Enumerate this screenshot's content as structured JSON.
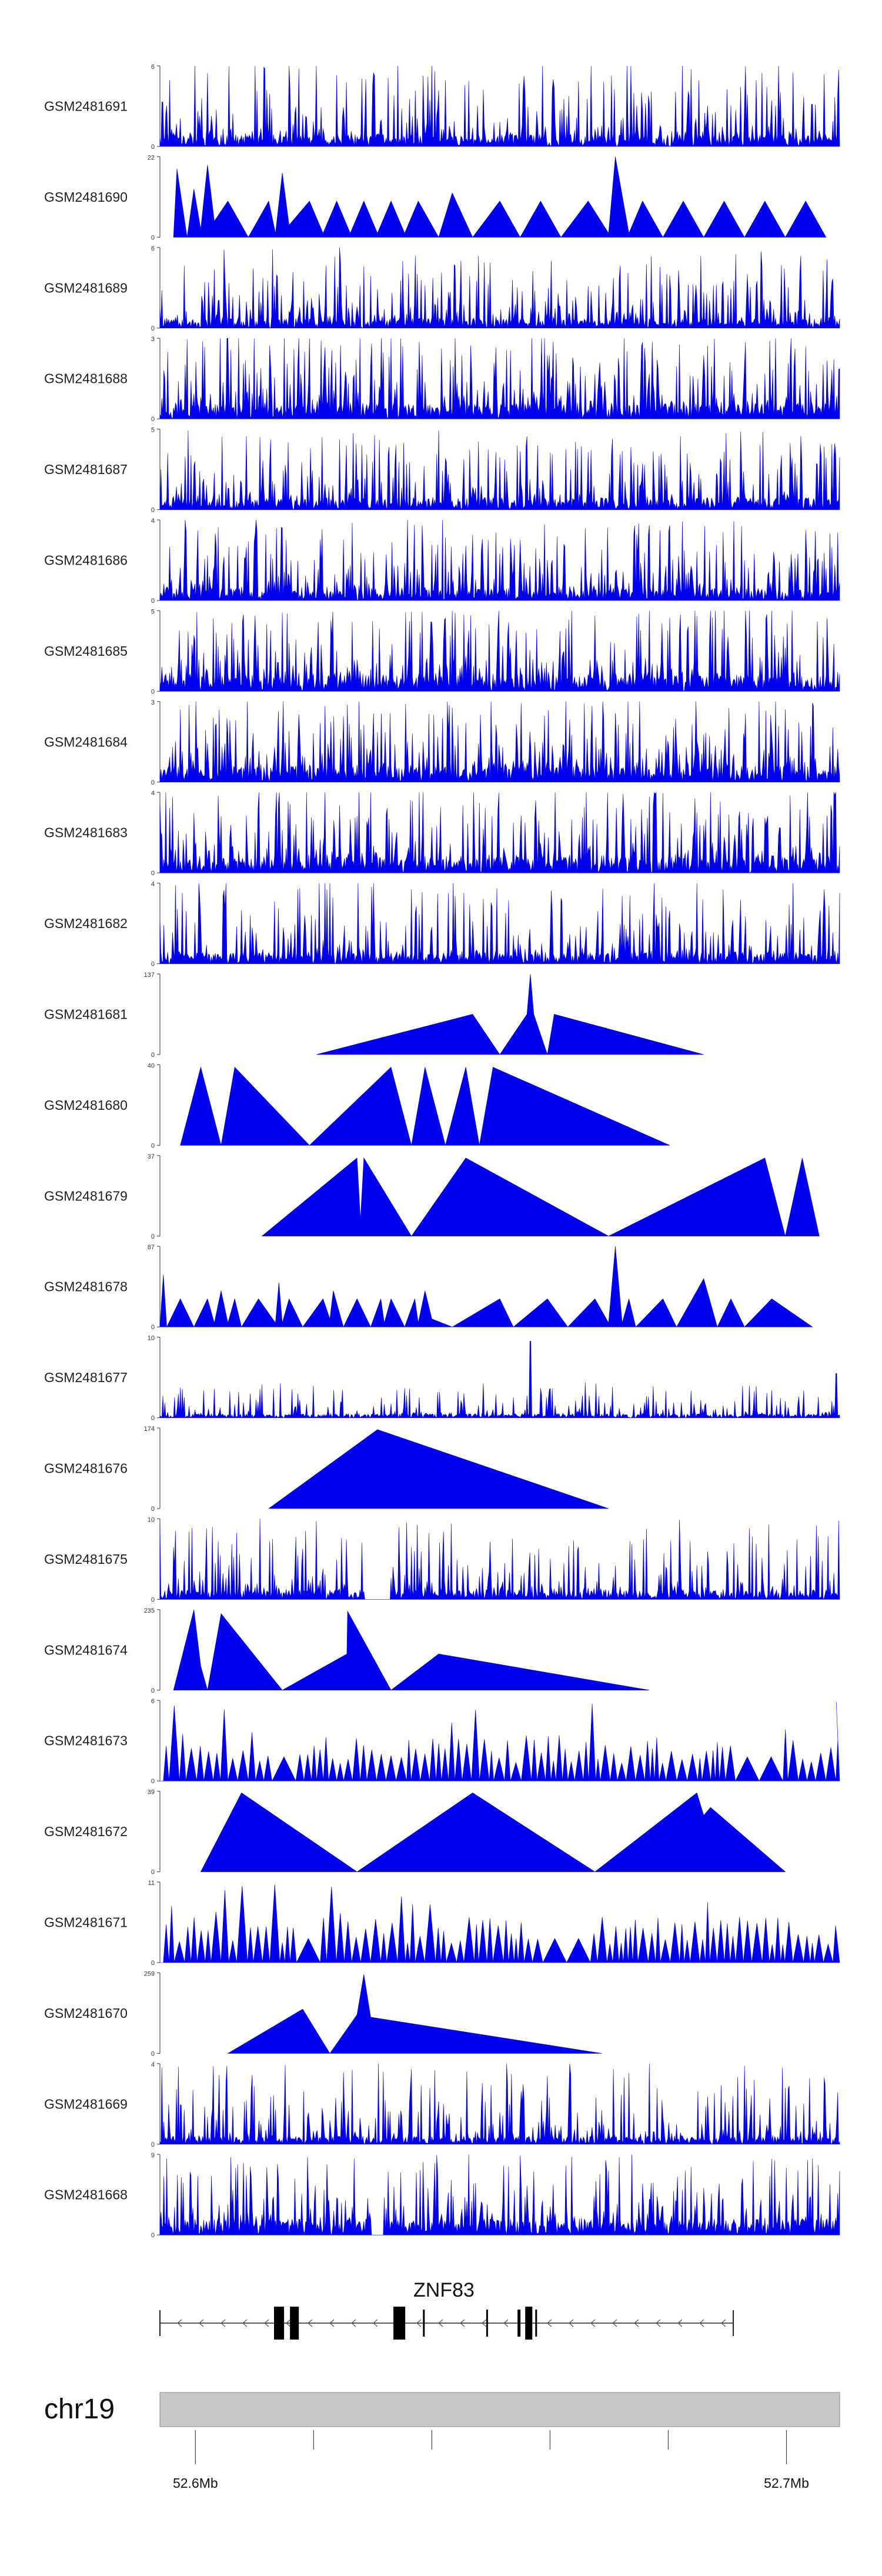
{
  "chart_data": {
    "type": "area",
    "title": "",
    "fill_color": "#0000EE",
    "region": {
      "chrom": "chr19",
      "start_mb": 52.594,
      "end_mb": 52.709
    },
    "axis_ticks_mb": [
      52.6,
      52.62,
      52.64,
      52.66,
      52.68,
      52.7
    ],
    "axis_labels": {
      "t0": "52.6Mb",
      "t5": "52.7Mb"
    },
    "gene": {
      "name": "ZNF83",
      "strand": "-",
      "start_mb": 52.594,
      "end_mb": 52.691,
      "exons_mb": [
        [
          52.6133,
          52.615
        ],
        [
          52.616,
          52.6175
        ],
        [
          52.6335,
          52.6355
        ],
        [
          52.6385,
          52.6388
        ],
        [
          52.6492,
          52.6495
        ],
        [
          52.6545,
          52.655
        ],
        [
          52.6558,
          52.657
        ],
        [
          52.6575,
          52.6578
        ]
      ]
    },
    "tracks": [
      {
        "label": "GSM2481691",
        "ymax": "6",
        "ymin": "0",
        "style": "noise",
        "seed": 11,
        "baseline": 0.15,
        "spike_max": 1.0,
        "spike_rate": 0.5
      },
      {
        "label": "GSM2481690",
        "ymax": "22",
        "ymin": "0",
        "style": "tri",
        "points": [
          [
            0.02,
            0
          ],
          [
            0.025,
            0.85
          ],
          [
            0.04,
            0
          ],
          [
            0.05,
            0.6
          ],
          [
            0.06,
            0.1
          ],
          [
            0.07,
            0.9
          ],
          [
            0.08,
            0.2
          ],
          [
            0.1,
            0.45
          ],
          [
            0.13,
            0
          ],
          [
            0.16,
            0.45
          ],
          [
            0.17,
            0.05
          ],
          [
            0.18,
            0.8
          ],
          [
            0.19,
            0.15
          ],
          [
            0.22,
            0.45
          ],
          [
            0.24,
            0.05
          ],
          [
            0.26,
            0.45
          ],
          [
            0.28,
            0.05
          ],
          [
            0.3,
            0.45
          ],
          [
            0.32,
            0.05
          ],
          [
            0.34,
            0.45
          ],
          [
            0.36,
            0.05
          ],
          [
            0.38,
            0.45
          ],
          [
            0.41,
            0
          ],
          [
            0.43,
            0.55
          ],
          [
            0.46,
            0
          ],
          [
            0.5,
            0.45
          ],
          [
            0.53,
            0
          ],
          [
            0.56,
            0.45
          ],
          [
            0.59,
            0
          ],
          [
            0.63,
            0.45
          ],
          [
            0.66,
            0.05
          ],
          [
            0.67,
            1.0
          ],
          [
            0.69,
            0.05
          ],
          [
            0.71,
            0.45
          ],
          [
            0.74,
            0
          ],
          [
            0.77,
            0.45
          ],
          [
            0.8,
            0
          ],
          [
            0.83,
            0.45
          ],
          [
            0.86,
            0
          ],
          [
            0.89,
            0.45
          ],
          [
            0.92,
            0
          ],
          [
            0.95,
            0.45
          ],
          [
            0.98,
            0
          ]
        ]
      },
      {
        "label": "GSM2481689",
        "ymax": "6",
        "ymin": "0",
        "style": "noise",
        "seed": 23,
        "baseline": 0.12,
        "spike_max": 0.9,
        "spike_rate": 0.55
      },
      {
        "label": "GSM2481688",
        "ymax": "3",
        "ymin": "0",
        "style": "noise",
        "seed": 37,
        "baseline": 0.2,
        "spike_max": 1.0,
        "spike_rate": 0.6
      },
      {
        "label": "GSM2481687",
        "ymax": "5",
        "ymin": "0",
        "style": "noise",
        "seed": 41,
        "baseline": 0.15,
        "spike_max": 0.9,
        "spike_rate": 0.5
      },
      {
        "label": "GSM2481686",
        "ymax": "4",
        "ymin": "0",
        "style": "noise",
        "seed": 53,
        "baseline": 0.15,
        "spike_max": 0.95,
        "spike_rate": 0.55
      },
      {
        "label": "GSM2481685",
        "ymax": "5",
        "ymin": "0",
        "style": "noise",
        "seed": 61,
        "baseline": 0.2,
        "spike_max": 0.95,
        "spike_rate": 0.6
      },
      {
        "label": "GSM2481684",
        "ymax": "3",
        "ymin": "0",
        "style": "noise",
        "seed": 73,
        "baseline": 0.2,
        "spike_max": 1.0,
        "spike_rate": 0.6
      },
      {
        "label": "GSM2481683",
        "ymax": "4",
        "ymin": "0",
        "style": "noise",
        "seed": 79,
        "baseline": 0.2,
        "spike_max": 1.0,
        "spike_rate": 0.6
      },
      {
        "label": "GSM2481682",
        "ymax": "4",
        "ymin": "0",
        "style": "noise",
        "seed": 89,
        "baseline": 0.15,
        "spike_max": 1.0,
        "spike_rate": 0.5
      },
      {
        "label": "GSM2481681",
        "ymax": "137",
        "ymin": "0",
        "style": "tri",
        "points": [
          [
            0.23,
            0
          ],
          [
            0.46,
            0.5
          ],
          [
            0.5,
            0
          ],
          [
            0.54,
            0.5
          ],
          [
            0.545,
            1.0
          ],
          [
            0.55,
            0.5
          ],
          [
            0.57,
            0
          ],
          [
            0.58,
            0.5
          ],
          [
            0.8,
            0
          ]
        ]
      },
      {
        "label": "GSM2481680",
        "ymax": "40",
        "ymin": "0",
        "style": "tri",
        "points": [
          [
            0.03,
            0
          ],
          [
            0.06,
            0.97
          ],
          [
            0.09,
            0
          ],
          [
            0.11,
            0.97
          ],
          [
            0.22,
            0
          ],
          [
            0.34,
            0.97
          ],
          [
            0.37,
            0
          ],
          [
            0.39,
            0.97
          ],
          [
            0.42,
            0
          ],
          [
            0.45,
            0.97
          ],
          [
            0.47,
            0
          ],
          [
            0.49,
            0.97
          ],
          [
            0.75,
            0
          ]
        ]
      },
      {
        "label": "GSM2481679",
        "ymax": "37",
        "ymin": "0",
        "style": "tri",
        "points": [
          [
            0.15,
            0
          ],
          [
            0.29,
            0.97
          ],
          [
            0.295,
            0.2
          ],
          [
            0.3,
            0.97
          ],
          [
            0.37,
            0
          ],
          [
            0.45,
            0.97
          ],
          [
            0.66,
            0
          ],
          [
            0.89,
            0.97
          ],
          [
            0.92,
            0
          ],
          [
            0.945,
            0.97
          ],
          [
            0.97,
            0
          ]
        ]
      },
      {
        "label": "GSM2481678",
        "ymax": "87",
        "ymin": "0",
        "style": "tri",
        "points": [
          [
            0,
            0
          ],
          [
            0.005,
            0.65
          ],
          [
            0.01,
            0
          ],
          [
            0.03,
            0.35
          ],
          [
            0.05,
            0
          ],
          [
            0.07,
            0.35
          ],
          [
            0.08,
            0.05
          ],
          [
            0.09,
            0.45
          ],
          [
            0.1,
            0.05
          ],
          [
            0.11,
            0.35
          ],
          [
            0.12,
            0
          ],
          [
            0.145,
            0.35
          ],
          [
            0.17,
            0.05
          ],
          [
            0.175,
            0.55
          ],
          [
            0.18,
            0.05
          ],
          [
            0.19,
            0.35
          ],
          [
            0.21,
            0
          ],
          [
            0.24,
            0.35
          ],
          [
            0.25,
            0.1
          ],
          [
            0.255,
            0.45
          ],
          [
            0.27,
            0
          ],
          [
            0.29,
            0.35
          ],
          [
            0.31,
            0
          ],
          [
            0.325,
            0.35
          ],
          [
            0.33,
            0.05
          ],
          [
            0.34,
            0.35
          ],
          [
            0.36,
            0
          ],
          [
            0.375,
            0.35
          ],
          [
            0.38,
            0.05
          ],
          [
            0.39,
            0.45
          ],
          [
            0.4,
            0.1
          ],
          [
            0.43,
            0
          ],
          [
            0.5,
            0.35
          ],
          [
            0.52,
            0
          ],
          [
            0.57,
            0.35
          ],
          [
            0.6,
            0
          ],
          [
            0.64,
            0.35
          ],
          [
            0.66,
            0.05
          ],
          [
            0.67,
            1.0
          ],
          [
            0.68,
            0.05
          ],
          [
            0.69,
            0.35
          ],
          [
            0.7,
            0
          ],
          [
            0.74,
            0.35
          ],
          [
            0.76,
            0
          ],
          [
            0.8,
            0.6
          ],
          [
            0.82,
            0
          ],
          [
            0.84,
            0.35
          ],
          [
            0.86,
            0
          ],
          [
            0.9,
            0.35
          ],
          [
            0.96,
            0
          ]
        ]
      },
      {
        "label": "GSM2481677",
        "ymax": "10",
        "ymin": "0",
        "style": "noise",
        "seed": 97,
        "baseline": 0.05,
        "spike_max": 0.4,
        "spike_rate": 0.35,
        "peaks": [
          [
            0.545,
            0.95
          ],
          [
            0.995,
            0.55
          ]
        ]
      },
      {
        "label": "GSM2481676",
        "ymax": "174",
        "ymin": "0",
        "style": "tri",
        "points": [
          [
            0.16,
            0
          ],
          [
            0.32,
            0.98
          ],
          [
            0.66,
            0
          ]
        ]
      },
      {
        "label": "GSM2481675",
        "ymax": "10",
        "ymin": "0",
        "style": "noise",
        "seed": 101,
        "baseline": 0.12,
        "spike_max": 0.95,
        "spike_rate": 0.45,
        "gap": [
          0.3,
          0.34
        ]
      },
      {
        "label": "GSM2481674",
        "ymax": "235",
        "ymin": "0",
        "style": "tri",
        "points": [
          [
            0.02,
            0
          ],
          [
            0.05,
            1.0
          ],
          [
            0.06,
            0.3
          ],
          [
            0.07,
            0
          ],
          [
            0.09,
            0.95
          ],
          [
            0.18,
            0
          ],
          [
            0.275,
            0.45
          ],
          [
            0.276,
            0.98
          ],
          [
            0.34,
            0
          ],
          [
            0.41,
            0.45
          ],
          [
            0.72,
            0
          ]
        ]
      },
      {
        "label": "GSM2481673",
        "ymax": "6",
        "ymin": "0",
        "style": "saw",
        "seed": 7,
        "gaps": [
          [
            0.84,
            0.9
          ],
          [
            0.16,
            0.19
          ]
        ],
        "end_peak": [
          0.995,
          0.98
        ]
      },
      {
        "label": "GSM2481672",
        "ymax": "39",
        "ymin": "0",
        "style": "tri",
        "points": [
          [
            0.06,
            0
          ],
          [
            0.12,
            0.98
          ],
          [
            0.29,
            0
          ],
          [
            0.46,
            0.98
          ],
          [
            0.64,
            0
          ],
          [
            0.79,
            0.98
          ],
          [
            0.8,
            0.7
          ],
          [
            0.81,
            0.8
          ],
          [
            0.92,
            0
          ]
        ]
      },
      {
        "label": "GSM2481671",
        "ymax": "11",
        "ymin": "0",
        "style": "saw",
        "seed": 13,
        "gaps": [
          [
            0.2,
            0.23
          ],
          [
            0.56,
            0.6
          ]
        ],
        "density": "mixed"
      },
      {
        "label": "GSM2481670",
        "ymax": "259",
        "ymin": "0",
        "style": "tri",
        "points": [
          [
            0.1,
            0
          ],
          [
            0.21,
            0.55
          ],
          [
            0.25,
            0
          ],
          [
            0.29,
            0.48
          ],
          [
            0.3,
            0.98
          ],
          [
            0.31,
            0.45
          ],
          [
            0.65,
            0
          ]
        ]
      },
      {
        "label": "GSM2481669",
        "ymax": "4",
        "ymin": "0",
        "style": "noise",
        "seed": 151,
        "baseline": 0.1,
        "spike_max": 0.95,
        "spike_rate": 0.5
      },
      {
        "label": "GSM2481668",
        "ymax": "9",
        "ymin": "0",
        "style": "noise",
        "seed": 163,
        "baseline": 0.2,
        "spike_max": 0.9,
        "spike_rate": 0.55,
        "gap": [
          0.31,
          0.33
        ],
        "peaks": [
          [
            0.01,
            0.95
          ],
          [
            0.96,
            0.95
          ]
        ]
      }
    ]
  }
}
